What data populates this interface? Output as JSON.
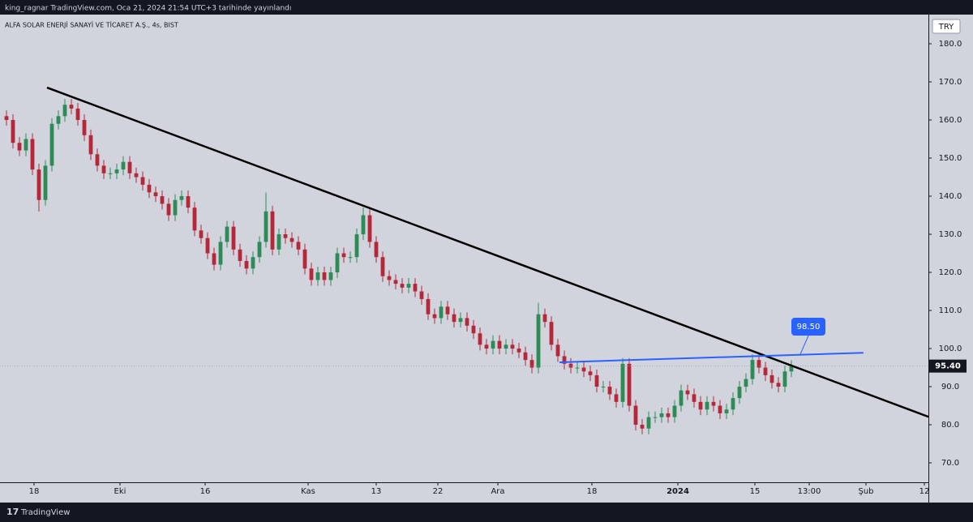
{
  "chart_data": {
    "type": "candlestick",
    "header": "king_ragnar TradingView.com, Oca 21, 2024 21:54 UTC+3 tarihinde yayınlandı",
    "title": "ALFA SOLAR ENERJİ SANAYİ VE TİCARET A.Ş., 4s, BIST",
    "currency": "TRY",
    "footer": "TradingView",
    "up_color": "#2e8b57",
    "down_color": "#b5283a",
    "open": [
      161,
      160,
      154,
      152,
      155,
      147,
      139,
      148,
      159,
      161,
      164,
      163,
      160,
      156,
      151,
      148,
      146,
      146,
      147,
      149,
      146,
      145,
      143,
      141,
      140,
      138,
      135,
      139,
      140,
      137,
      131,
      129,
      125,
      122,
      128,
      132,
      126,
      123,
      121,
      124,
      128,
      136,
      126,
      130,
      129,
      128,
      126,
      121,
      118,
      120,
      118,
      120,
      125,
      124,
      124,
      130,
      135,
      128,
      124,
      119,
      118,
      117,
      116,
      117,
      115,
      113,
      109,
      108,
      111,
      109,
      107,
      108,
      106,
      104,
      101,
      100,
      102,
      100,
      101,
      100,
      99,
      97,
      95,
      109,
      107,
      101,
      98,
      96,
      95,
      95,
      94,
      93,
      90,
      90,
      88,
      86,
      96,
      85,
      80,
      79,
      82,
      82,
      83,
      82,
      85,
      89,
      88,
      86,
      84,
      86,
      85,
      83,
      84,
      87,
      90,
      92,
      97,
      95,
      93,
      91,
      90,
      94
    ],
    "high": [
      162.5,
      161.5,
      155.5,
      156.5,
      156.5,
      148.5,
      149.5,
      160.5,
      162.5,
      165.5,
      165.5,
      164.5,
      161.5,
      157.5,
      152.5,
      149.5,
      147.5,
      148.5,
      150.5,
      150.5,
      147.5,
      146.5,
      144.5,
      142.5,
      141.5,
      139.5,
      140.5,
      141.5,
      141.5,
      138.5,
      132.5,
      130.5,
      126.5,
      129.5,
      133.5,
      133.5,
      127.5,
      124.5,
      125.5,
      129.5,
      141,
      137.5,
      131.5,
      131.5,
      130.5,
      129.5,
      127.5,
      122.5,
      121.5,
      121.5,
      121.5,
      126.5,
      126.5,
      125.5,
      131.5,
      137,
      136.5,
      129.5,
      125.5,
      120.5,
      119.5,
      118.5,
      118.5,
      118.5,
      116.5,
      114.5,
      110.5,
      112.5,
      112.5,
      110.5,
      109.5,
      109.5,
      107.5,
      105.5,
      102.5,
      103.5,
      103.5,
      102.5,
      102.5,
      101.5,
      100.5,
      98.5,
      112,
      110.5,
      108.5,
      102.5,
      99.5,
      97.5,
      96.5,
      96.5,
      95.5,
      94.5,
      91.5,
      91.5,
      89.5,
      97.5,
      97.5,
      86.5,
      81.5,
      83.5,
      83.5,
      84.5,
      84.5,
      86.5,
      90.5,
      90.5,
      89.5,
      87.5,
      87.5,
      87.5,
      86.5,
      85.5,
      88.5,
      91.5,
      93.5,
      98.5,
      98.5,
      96.5,
      94.5,
      92.5,
      95.5,
      96.9
    ],
    "low": [
      158.5,
      152.5,
      150.5,
      150.5,
      145.5,
      136,
      137.5,
      146.5,
      157.5,
      159.5,
      161.5,
      158.5,
      154.5,
      149.5,
      146.5,
      144.5,
      144.5,
      144.5,
      145.5,
      144.5,
      143.5,
      141.5,
      139.5,
      138.5,
      136.5,
      133.5,
      133.5,
      137.5,
      135.5,
      129.5,
      127.5,
      123.5,
      120.5,
      120.5,
      126.5,
      124.5,
      121.5,
      119.5,
      119.5,
      122.5,
      126.5,
      124.5,
      124.5,
      127.5,
      126.5,
      124.5,
      119.5,
      116.5,
      116.5,
      116.5,
      116.5,
      118.5,
      122.5,
      122.5,
      122.5,
      128.5,
      126.5,
      122.5,
      117.5,
      116.5,
      115.5,
      114.5,
      114.5,
      113.5,
      111.5,
      107.5,
      106.5,
      106.5,
      107.5,
      105.5,
      105.5,
      104.5,
      102.5,
      99.5,
      98.5,
      98.5,
      98.5,
      98.5,
      98.5,
      97.5,
      95.5,
      93.5,
      93.5,
      105.5,
      99.5,
      96.5,
      94.5,
      93.5,
      93.5,
      92.5,
      91.5,
      88.5,
      88.5,
      86.5,
      84.5,
      84.5,
      83.5,
      78.5,
      77.5,
      77.5,
      80.5,
      80.5,
      80.5,
      80.5,
      83.5,
      86.5,
      84.5,
      82.5,
      82.5,
      83.5,
      81.5,
      81.5,
      82.5,
      85.5,
      88.5,
      90.5,
      93.5,
      91.5,
      89.5,
      88.5,
      88.5,
      92.5
    ],
    "close": [
      160,
      154,
      152,
      155,
      147,
      139,
      148,
      159,
      161,
      164,
      163,
      160,
      156,
      151,
      148,
      146,
      146,
      147,
      149,
      146,
      145,
      143,
      141,
      140,
      138,
      135,
      139,
      140,
      137,
      131,
      129,
      125,
      122,
      128,
      132,
      126,
      123,
      121,
      124,
      128,
      136,
      126,
      130,
      129,
      128,
      126,
      121,
      118,
      120,
      118,
      120,
      125,
      124,
      124,
      130,
      135,
      128,
      124,
      119,
      118,
      117,
      116,
      117,
      115,
      113,
      109,
      108,
      111,
      109,
      107,
      108,
      106,
      104,
      101,
      100,
      102,
      100,
      101,
      100,
      99,
      97,
      95,
      109,
      107,
      101,
      98,
      96,
      95,
      95,
      94,
      93,
      90,
      90,
      88,
      86,
      96,
      85,
      80,
      79,
      82,
      82,
      83,
      82,
      85,
      89,
      88,
      86,
      84,
      86,
      85,
      83,
      84,
      87,
      90,
      92,
      97,
      95,
      93,
      91,
      90,
      94,
      95.4
    ],
    "xlim": [
      -1,
      142.125
    ],
    "ylim": [
      64.9,
      187.66
    ],
    "yticks": [
      {
        "value": 70,
        "label": "70.0"
      },
      {
        "value": 80,
        "label": "80.0"
      },
      {
        "value": 90,
        "label": "90.0"
      },
      {
        "value": 100,
        "label": "100.0"
      },
      {
        "value": 110,
        "label": "110.0"
      },
      {
        "value": 120,
        "label": "120.0"
      },
      {
        "value": 130,
        "label": "130.0"
      },
      {
        "value": 140,
        "label": "140.0"
      },
      {
        "value": 150,
        "label": "150.0"
      },
      {
        "value": 160,
        "label": "160.0"
      },
      {
        "value": 170,
        "label": "170.0"
      },
      {
        "value": 180,
        "label": "180.0"
      }
    ],
    "xticks": [
      {
        "value": 4.25,
        "label": "18"
      },
      {
        "value": 17.5,
        "label": "Eki"
      },
      {
        "value": 30.625,
        "label": "16"
      },
      {
        "value": 46.5,
        "label": "Kas"
      },
      {
        "value": 57,
        "label": "13"
      },
      {
        "value": 66.5,
        "label": "22"
      },
      {
        "value": 75.75,
        "label": "Ara"
      },
      {
        "value": 90.25,
        "label": "18"
      },
      {
        "value": 103.5,
        "label": "2024"
      },
      {
        "value": 115.375,
        "label": "15"
      },
      {
        "value": 123.75,
        "label": "13:00"
      },
      {
        "value": 132.5,
        "label": "Şub"
      },
      {
        "value": 141.5,
        "label": "12"
      }
    ],
    "trendlines": [
      {
        "color": "#000000",
        "points": [
          [
            6.25,
            168.5
          ],
          [
            142.125,
            82.1
          ]
        ]
      },
      {
        "color": "#2962ff",
        "points": [
          [
            85.25,
            96.4
          ],
          [
            132.1,
            98.9
          ]
        ]
      }
    ],
    "annotation": {
      "value": 98.5,
      "label": "98.50",
      "color": "#2962ff"
    },
    "last_price": {
      "value": 95.4,
      "label": "95.40"
    }
  }
}
